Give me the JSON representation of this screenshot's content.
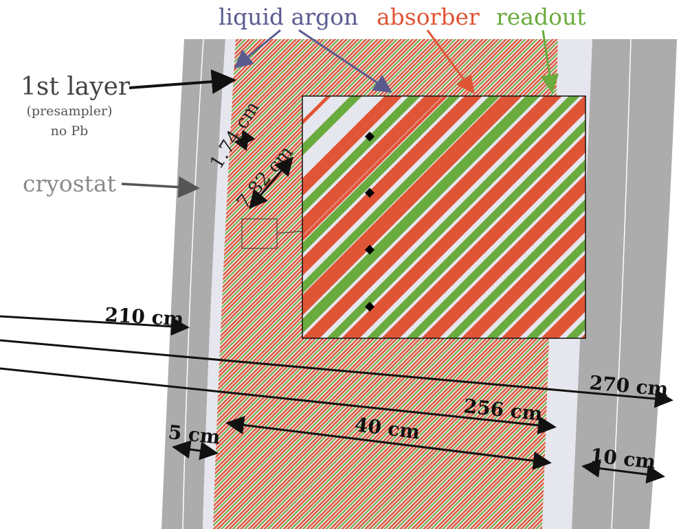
{
  "legend": {
    "liquid_argon": "liquid argon",
    "absorber": "absorber",
    "readout": "readout"
  },
  "labels": {
    "first_layer": "1st layer",
    "presampler": "(presampler)",
    "no_pb": "no Pb",
    "cryostat": "cryostat",
    "gap_1": "1.74 cm",
    "gap_2": "7.82 cm"
  },
  "dimensions": {
    "r_210": "210 cm",
    "r_270": "270 cm",
    "r_256": "256 cm",
    "d_40": "40 cm",
    "d_5": "5 cm",
    "d_10": "10 cm"
  },
  "colors": {
    "liquid_argon": "#5b5a8f",
    "absorber": "#e05536",
    "readout": "#6aab3e",
    "cryostat": "#acacac",
    "argon_gap": "#e8e8f0",
    "cryostat_label": "#8a8a8a"
  }
}
